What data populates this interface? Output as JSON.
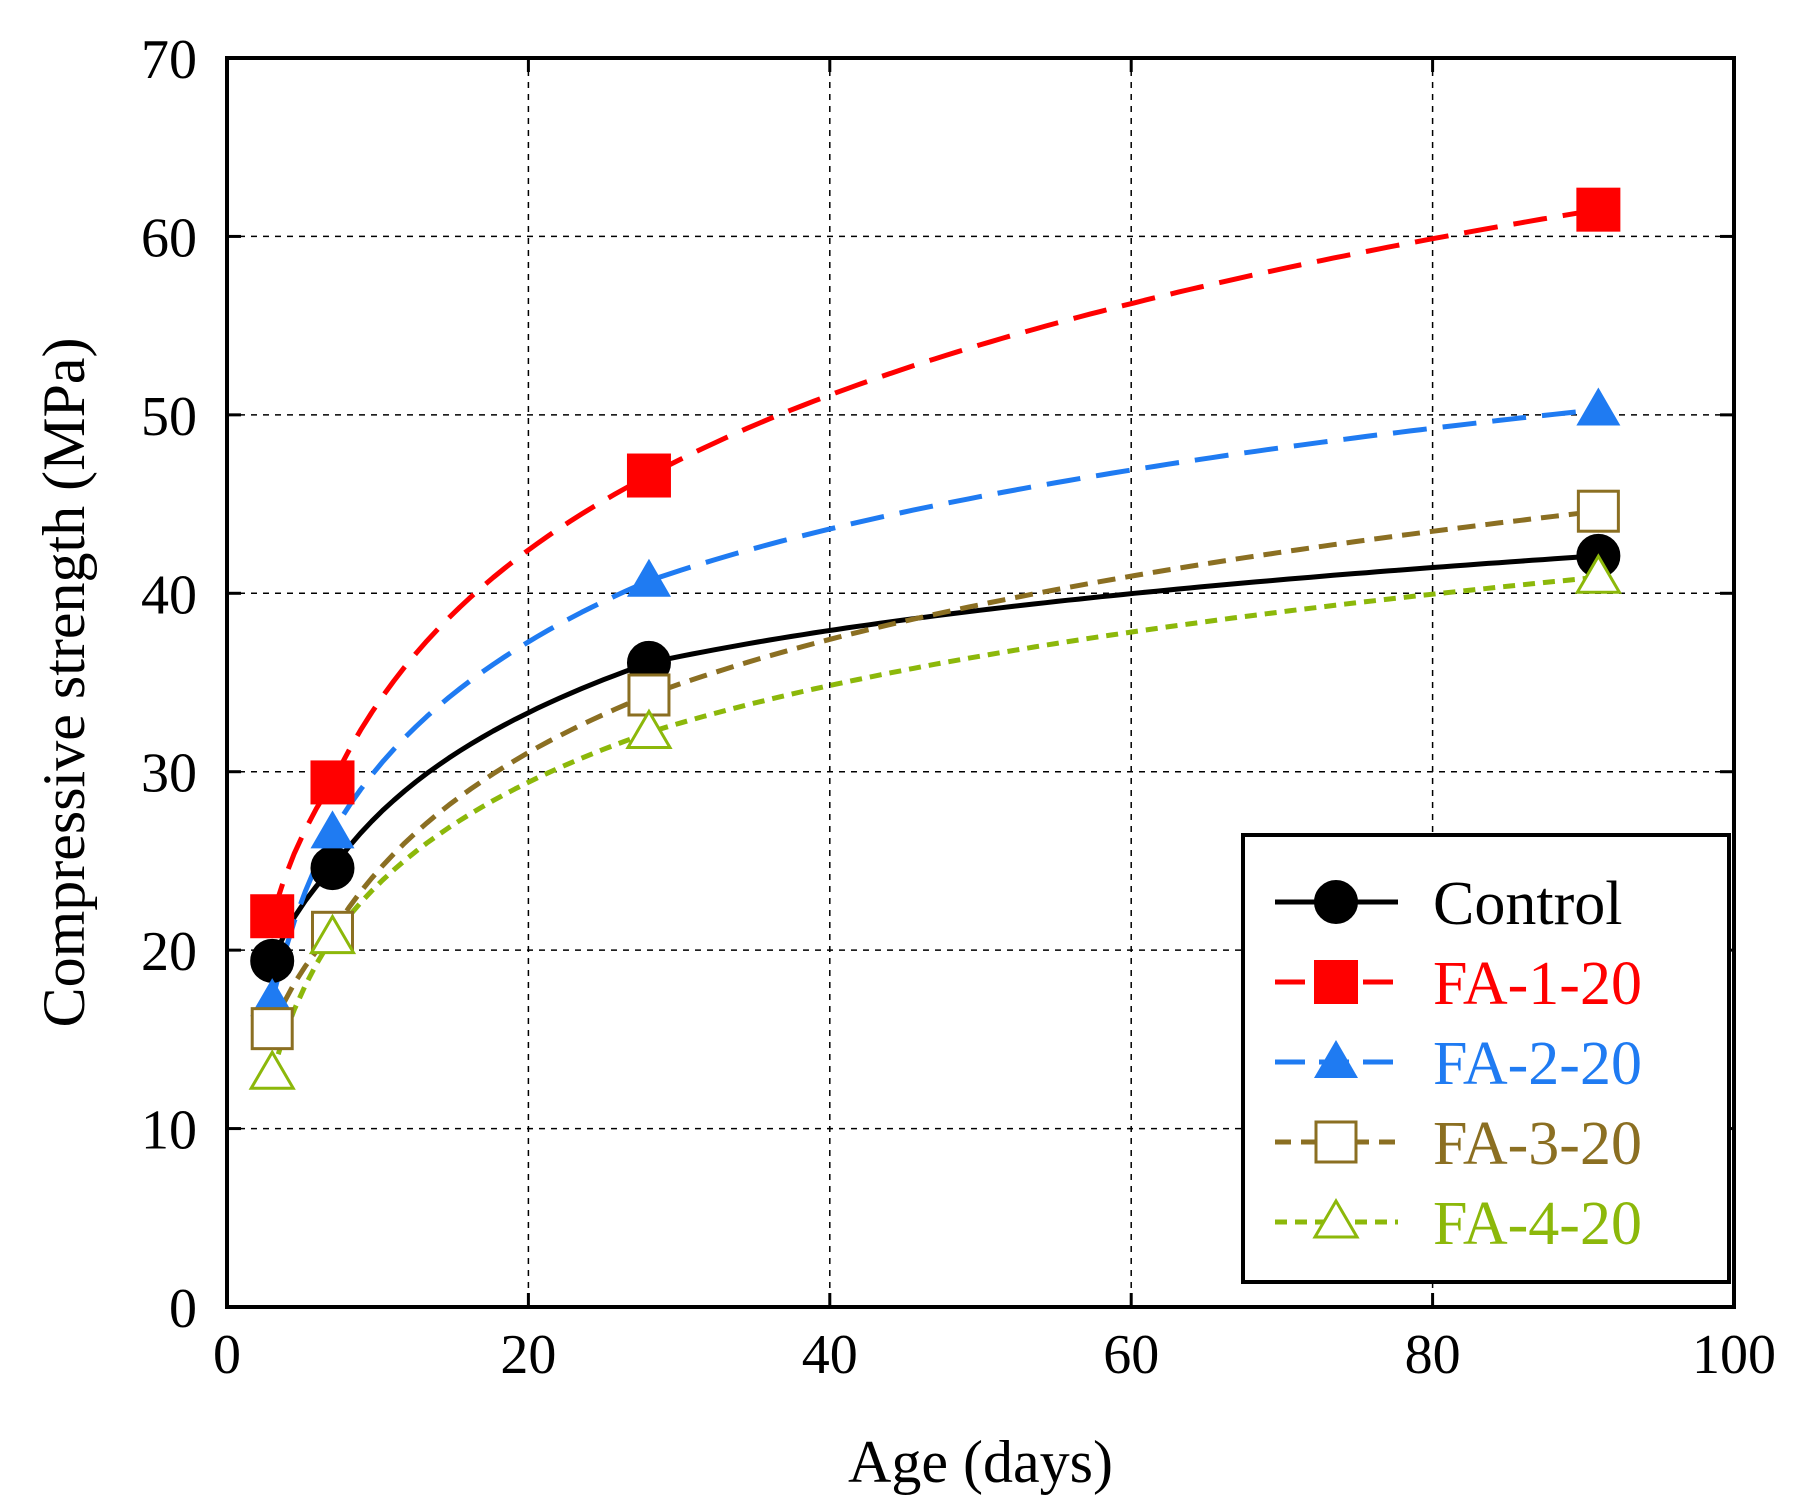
{
  "chart_data": {
    "type": "line",
    "xlabel": "Age (days)",
    "ylabel": "Compressive strength (MPa)",
    "xlim": [
      0,
      100
    ],
    "ylim": [
      0,
      70
    ],
    "xticks": [
      0,
      20,
      40,
      60,
      80,
      100
    ],
    "yticks": [
      0,
      10,
      20,
      30,
      40,
      50,
      60,
      70
    ],
    "grid": true,
    "legend_position": "bottom-right",
    "x": [
      3,
      7,
      28,
      91
    ],
    "series": [
      {
        "name": "Control",
        "values": [
          19.4,
          24.6,
          36.1,
          42.1
        ],
        "color": "#000000",
        "marker": "circle-filled",
        "dash": "solid"
      },
      {
        "name": "FA-1-20",
        "values": [
          21.9,
          29.4,
          46.6,
          61.5
        ],
        "color": "#ff0000",
        "marker": "square-filled",
        "dash": "long-dash"
      },
      {
        "name": "FA-2-20",
        "values": [
          17.2,
          26.6,
          40.7,
          50.3
        ],
        "color": "#1f7bf2",
        "marker": "triangle-filled",
        "dash": "long-dash"
      },
      {
        "name": "FA-3-20",
        "values": [
          15.6,
          21.0,
          34.3,
          44.6
        ],
        "color": "#8b6f22",
        "marker": "square-open",
        "dash": "dash"
      },
      {
        "name": "FA-4-20",
        "values": [
          13.1,
          20.7,
          32.2,
          40.9
        ],
        "color": "#8cb80a",
        "marker": "triangle-open",
        "dash": "short-dash"
      }
    ]
  }
}
